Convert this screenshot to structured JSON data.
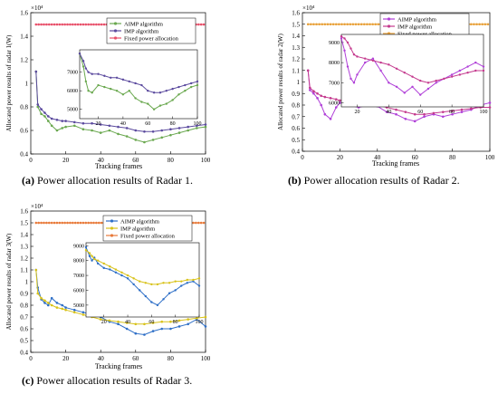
{
  "captions": {
    "a_label": "(a)",
    "a_text": "Power allocation results of Radar 1.",
    "b_label": "(b)",
    "b_text": "Power allocation results of Radar 2.",
    "c_label": "(c)",
    "c_text": "Power allocation results of Radar 3."
  },
  "chart_data": [
    {
      "type": "line",
      "id": "radar1",
      "xlabel": "Tracking frames",
      "ylabel": "Allocated power results of radar 1(W)",
      "scale_note": "×10⁴",
      "xlim": [
        0,
        100
      ],
      "ylim": [
        0.4,
        1.6
      ],
      "xticks": [
        0,
        20,
        40,
        60,
        80,
        100
      ],
      "yticks": [
        0.4,
        0.6,
        0.8,
        1,
        1.2,
        1.4,
        1.6
      ],
      "legend_position": "top-right",
      "colors": {
        "AIMP": "#6aa84f",
        "IMP": "#5b4a9e",
        "FIXED": "#e8506a"
      },
      "series": [
        {
          "name": "AIMP algorithm",
          "key": "AIMP",
          "x": [
            3,
            4,
            6,
            8,
            10,
            12,
            15,
            18,
            20,
            25,
            30,
            35,
            40,
            45,
            50,
            55,
            60,
            65,
            70,
            75,
            80,
            85,
            90,
            95,
            100
          ],
          "values": [
            1.1,
            0.8,
            0.74,
            0.72,
            0.68,
            0.64,
            0.6,
            0.62,
            0.63,
            0.64,
            0.61,
            0.6,
            0.58,
            0.6,
            0.57,
            0.55,
            0.52,
            0.5,
            0.52,
            0.54,
            0.56,
            0.58,
            0.6,
            0.62,
            0.63
          ]
        },
        {
          "name": "IMP algorithm",
          "key": "IMP",
          "x": [
            3,
            4,
            6,
            8,
            10,
            12,
            15,
            18,
            20,
            25,
            30,
            35,
            40,
            45,
            50,
            55,
            60,
            65,
            70,
            75,
            80,
            85,
            90,
            95,
            100
          ],
          "values": [
            1.1,
            0.82,
            0.78,
            0.75,
            0.72,
            0.7,
            0.69,
            0.68,
            0.68,
            0.67,
            0.66,
            0.66,
            0.65,
            0.64,
            0.63,
            0.62,
            0.6,
            0.59,
            0.59,
            0.6,
            0.61,
            0.62,
            0.63,
            0.64,
            0.65
          ]
        },
        {
          "name": "Fixed power allocation",
          "key": "FIXED",
          "x": [
            3,
            100
          ],
          "values": [
            1.5,
            1.5
          ]
        }
      ],
      "inset": {
        "xlim": [
          5,
          100
        ],
        "ylim": [
          4500,
          8200
        ],
        "xticks": [
          20,
          40,
          60,
          80,
          100
        ],
        "yticks": [
          5000,
          6000,
          7000
        ],
        "series": [
          {
            "key": "AIMP",
            "x": [
              5,
              8,
              10,
              12,
              15,
              20,
              25,
              30,
              35,
              40,
              45,
              50,
              55,
              60,
              65,
              70,
              75,
              80,
              85,
              90,
              95,
              100
            ],
            "values": [
              8000,
              7300,
              6500,
              6000,
              5900,
              6300,
              6200,
              6100,
              6000,
              5800,
              6000,
              5600,
              5400,
              5300,
              5000,
              5200,
              5300,
              5500,
              5800,
              6000,
              6200,
              6300
            ]
          },
          {
            "key": "IMP",
            "x": [
              5,
              8,
              10,
              12,
              15,
              20,
              25,
              30,
              35,
              40,
              45,
              50,
              55,
              60,
              65,
              70,
              75,
              80,
              85,
              90,
              95,
              100
            ],
            "values": [
              8000,
              7600,
              7200,
              7000,
              6900,
              6900,
              6800,
              6700,
              6700,
              6600,
              6500,
              6400,
              6300,
              6000,
              5900,
              5900,
              6000,
              6100,
              6200,
              6300,
              6400,
              6500
            ]
          }
        ]
      }
    },
    {
      "type": "line",
      "id": "radar2",
      "xlabel": "Tracking frames",
      "ylabel": "Allocated power results of radar 2(W)",
      "scale_note": "×10⁴",
      "xlim": [
        0,
        100
      ],
      "ylim": [
        0.4,
        1.6
      ],
      "xticks": [
        0,
        20,
        40,
        60,
        80,
        100
      ],
      "yticks": [
        0.4,
        0.5,
        0.6,
        0.7,
        0.8,
        0.9,
        1,
        1.1,
        1.2,
        1.3,
        1.4,
        1.5,
        1.6
      ],
      "legend_position": "top-right",
      "colors": {
        "AIMP": "#b040d8",
        "IMP": "#c43a8e",
        "FIXED": "#e8a13a"
      },
      "series": [
        {
          "name": "AIMP algorithm",
          "key": "AIMP",
          "x": [
            3,
            4,
            6,
            8,
            10,
            12,
            15,
            18,
            20,
            25,
            30,
            35,
            40,
            45,
            50,
            55,
            60,
            65,
            70,
            75,
            80,
            85,
            90,
            95,
            100
          ],
          "values": [
            1.1,
            0.93,
            0.9,
            0.86,
            0.8,
            0.72,
            0.68,
            0.78,
            0.82,
            0.8,
            0.78,
            0.8,
            0.79,
            0.74,
            0.72,
            0.68,
            0.66,
            0.7,
            0.72,
            0.7,
            0.72,
            0.74,
            0.76,
            0.8,
            0.82
          ]
        },
        {
          "name": "IMP algorithm",
          "key": "IMP",
          "x": [
            3,
            4,
            6,
            8,
            10,
            12,
            15,
            18,
            20,
            25,
            30,
            35,
            40,
            45,
            50,
            55,
            60,
            65,
            70,
            75,
            80,
            85,
            90,
            95,
            100
          ],
          "values": [
            1.1,
            0.95,
            0.92,
            0.9,
            0.88,
            0.87,
            0.86,
            0.85,
            0.84,
            0.83,
            0.82,
            0.81,
            0.8,
            0.78,
            0.76,
            0.74,
            0.72,
            0.72,
            0.73,
            0.74,
            0.75,
            0.76,
            0.77,
            0.78,
            0.78
          ]
        },
        {
          "name": "Fixed power allocation",
          "key": "FIXED",
          "x": [
            3,
            100
          ],
          "values": [
            1.5,
            1.5
          ]
        }
      ],
      "inset": {
        "xlim": [
          10,
          100
        ],
        "ylim": [
          5800,
          9400
        ],
        "xticks": [
          20,
          40,
          60,
          80,
          100
        ],
        "yticks": [
          6000,
          7000,
          8000,
          9000
        ],
        "series": [
          {
            "key": "AIMP",
            "x": [
              10,
              12,
              14,
              16,
              18,
              20,
              25,
              30,
              35,
              40,
              45,
              50,
              55,
              60,
              65,
              70,
              75,
              80,
              85,
              90,
              95,
              100
            ],
            "values": [
              9200,
              8600,
              7800,
              7200,
              7000,
              7400,
              8000,
              8200,
              7600,
              7000,
              6800,
              6500,
              6800,
              6400,
              6700,
              7000,
              7200,
              7400,
              7600,
              7800,
              8000,
              7800
            ]
          },
          {
            "key": "IMP",
            "x": [
              10,
              12,
              14,
              16,
              18,
              20,
              25,
              30,
              35,
              40,
              45,
              50,
              55,
              60,
              65,
              70,
              75,
              80,
              85,
              90,
              95,
              100
            ],
            "values": [
              9300,
              9200,
              9000,
              8700,
              8400,
              8300,
              8200,
              8100,
              8000,
              7900,
              7700,
              7500,
              7300,
              7100,
              7000,
              7100,
              7200,
              7300,
              7400,
              7500,
              7600,
              7600
            ]
          }
        ]
      }
    },
    {
      "type": "line",
      "id": "radar3",
      "xlabel": "Tracking frames",
      "ylabel": "Allocated power results of radar 3(W)",
      "scale_note": "×10⁴",
      "xlim": [
        0,
        100
      ],
      "ylim": [
        0.4,
        1.6
      ],
      "xticks": [
        0,
        20,
        40,
        60,
        80,
        100
      ],
      "yticks": [
        0.4,
        0.5,
        0.6,
        0.7,
        0.8,
        0.9,
        1,
        1.1,
        1.2,
        1.3,
        1.4,
        1.5,
        1.6
      ],
      "legend_position": "top-right",
      "colors": {
        "AIMP": "#2e6fc7",
        "IMP": "#d8c21a",
        "FIXED": "#e87a3a"
      },
      "series": [
        {
          "name": "AIMP algorithm",
          "key": "AIMP",
          "x": [
            3,
            4,
            6,
            8,
            10,
            12,
            15,
            18,
            20,
            25,
            30,
            35,
            40,
            45,
            50,
            55,
            60,
            65,
            70,
            75,
            80,
            85,
            90,
            95,
            100
          ],
          "values": [
            1.1,
            0.95,
            0.85,
            0.82,
            0.8,
            0.86,
            0.82,
            0.8,
            0.78,
            0.76,
            0.74,
            0.72,
            0.7,
            0.66,
            0.64,
            0.6,
            0.56,
            0.55,
            0.58,
            0.6,
            0.6,
            0.62,
            0.64,
            0.68,
            0.62
          ]
        },
        {
          "name": "IMP algorithm",
          "key": "IMP",
          "x": [
            3,
            4,
            6,
            8,
            10,
            12,
            15,
            18,
            20,
            25,
            30,
            35,
            40,
            45,
            50,
            55,
            60,
            65,
            70,
            75,
            80,
            85,
            90,
            95,
            100
          ],
          "values": [
            1.1,
            0.9,
            0.86,
            0.84,
            0.82,
            0.8,
            0.78,
            0.77,
            0.76,
            0.74,
            0.72,
            0.7,
            0.68,
            0.67,
            0.66,
            0.65,
            0.64,
            0.64,
            0.65,
            0.66,
            0.66,
            0.67,
            0.68,
            0.69,
            0.7
          ]
        },
        {
          "name": "Fixed power allocation",
          "key": "FIXED",
          "x": [
            3,
            100
          ],
          "values": [
            1.5,
            1.5
          ]
        }
      ],
      "inset": {
        "xlim": [
          5,
          100
        ],
        "ylim": [
          4200,
          9200
        ],
        "xticks": [
          20,
          40,
          60,
          80,
          100
        ],
        "yticks": [
          5000,
          6000,
          7000,
          8000,
          9000
        ],
        "series": [
          {
            "key": "AIMP",
            "x": [
              5,
              8,
              10,
              12,
              15,
              20,
              25,
              30,
              35,
              40,
              45,
              50,
              55,
              60,
              65,
              70,
              75,
              80,
              85,
              90,
              95,
              100
            ],
            "values": [
              8900,
              8300,
              8000,
              8200,
              7800,
              7500,
              7400,
              7200,
              7000,
              6800,
              6400,
              6000,
              5600,
              5200,
              5000,
              5400,
              5800,
              6000,
              6300,
              6500,
              6600,
              6300
            ]
          },
          {
            "key": "IMP",
            "x": [
              5,
              8,
              10,
              12,
              15,
              20,
              25,
              30,
              35,
              40,
              45,
              50,
              55,
              60,
              65,
              70,
              75,
              80,
              85,
              90,
              95,
              100
            ],
            "values": [
              8700,
              8500,
              8300,
              8100,
              8000,
              7800,
              7600,
              7400,
              7200,
              7000,
              6800,
              6600,
              6500,
              6400,
              6400,
              6500,
              6500,
              6600,
              6600,
              6700,
              6700,
              6800
            ]
          }
        ]
      }
    }
  ]
}
